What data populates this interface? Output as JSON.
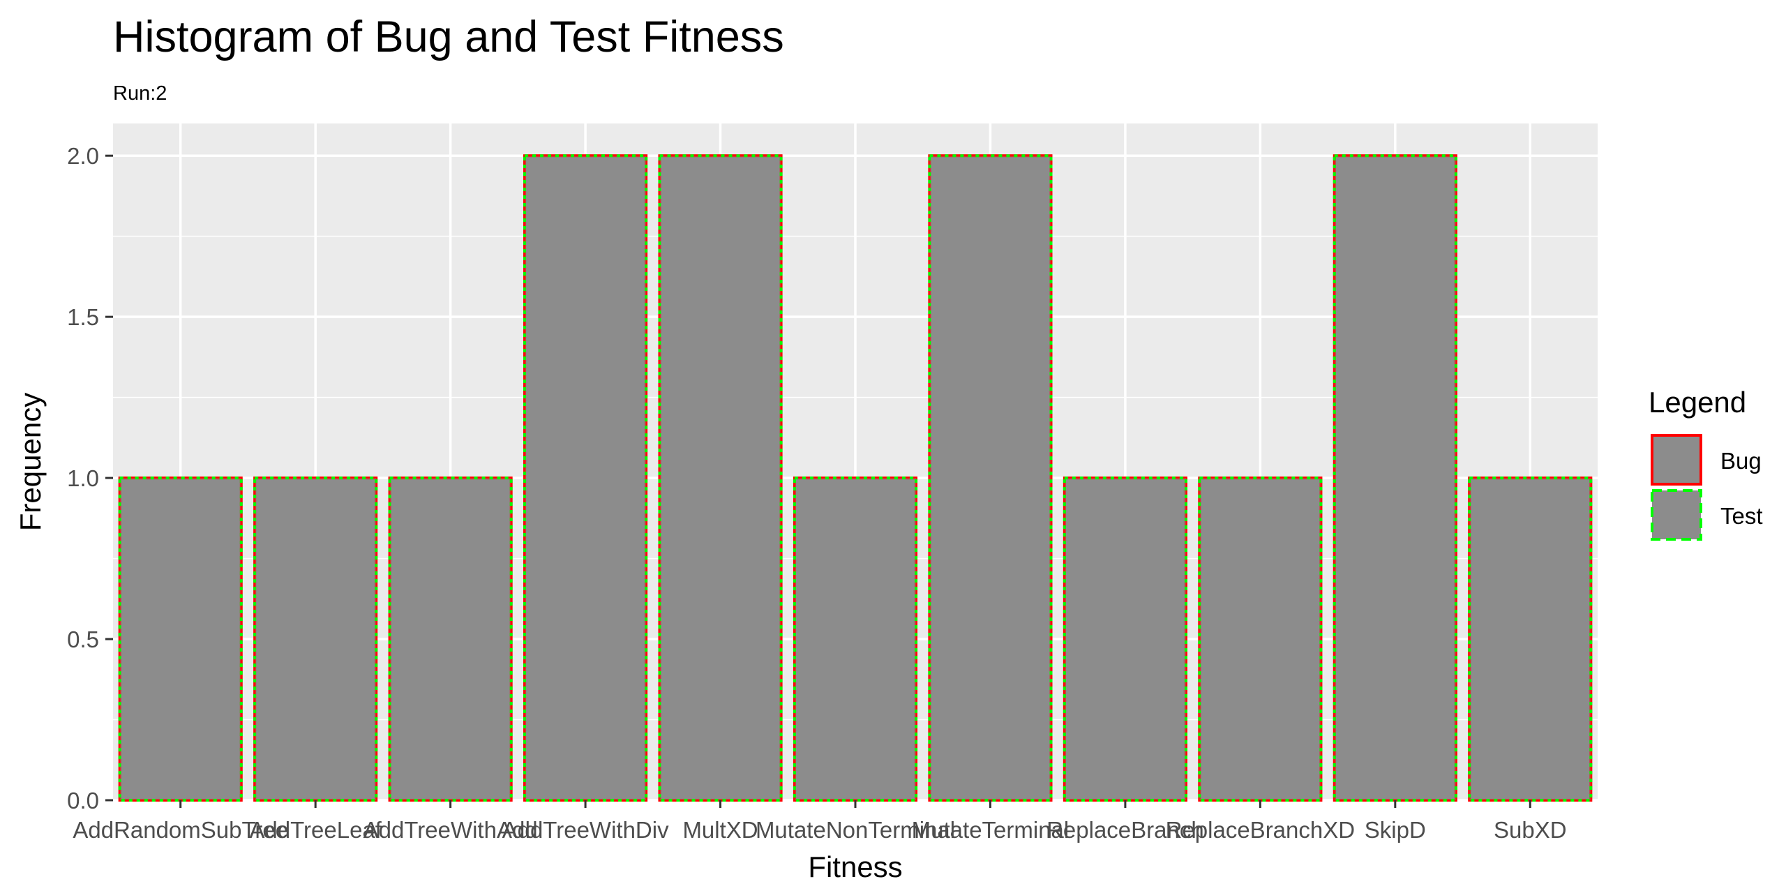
{
  "chart_data": {
    "type": "bar",
    "title": "Histogram of Bug and Test Fitness",
    "subtitle": "Run:2",
    "xlabel": "Fitness",
    "ylabel": "Frequency",
    "ylim": [
      0,
      2.1
    ],
    "y_ticks": [
      "0.0",
      "0.5",
      "1.0",
      "1.5",
      "2.0"
    ],
    "categories": [
      "AddRandomSubTree",
      "AddTreeLeaf",
      "AddTreeWithAdd",
      "AddTreeWithDiv",
      "MultXD",
      "MutateNonTerminal",
      "MutateTerminal",
      "ReplaceBranch",
      "ReplaceBranchXD",
      "SkipD",
      "SubXD"
    ],
    "series": [
      {
        "name": "Bug",
        "values": [
          1,
          1,
          1,
          2,
          2,
          1,
          2,
          1,
          1,
          2,
          1
        ],
        "border_color": "#ff0000",
        "border_style": "solid"
      },
      {
        "name": "Test",
        "values": [
          1,
          1,
          1,
          2,
          2,
          1,
          2,
          1,
          1,
          2,
          1
        ],
        "border_color": "#00ff00",
        "border_style": "dashed"
      }
    ],
    "fill_color": "#8c8c8c",
    "panel_background": "#ebebeb",
    "grid": true,
    "legend": {
      "title": "Legend",
      "position": "right"
    }
  }
}
